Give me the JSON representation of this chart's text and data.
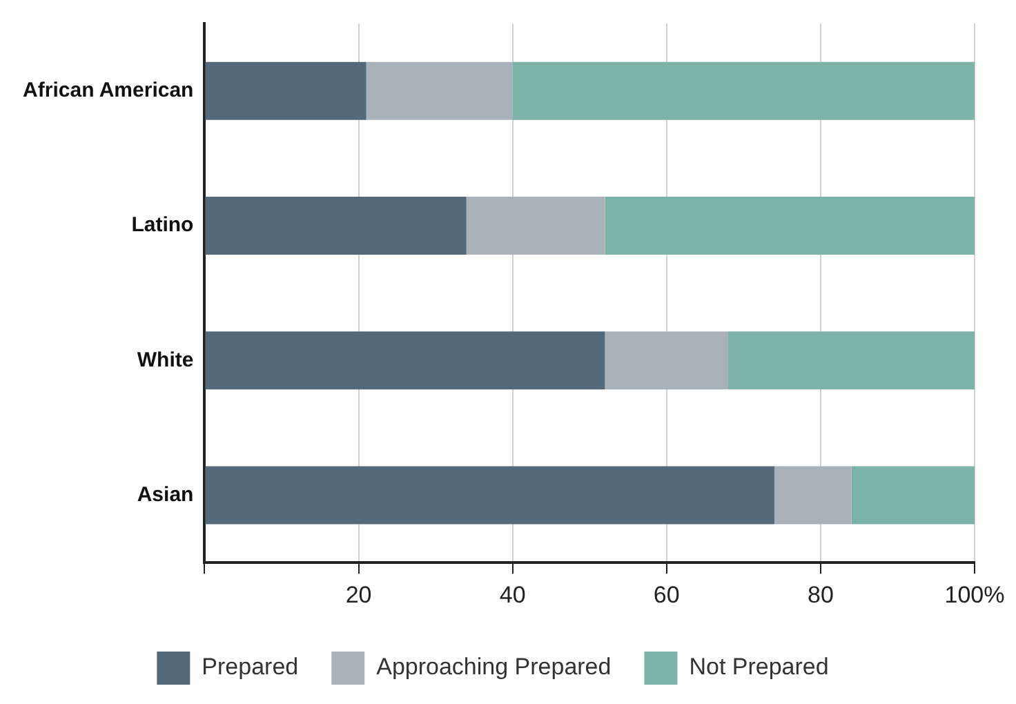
{
  "chart_data": {
    "type": "bar",
    "orientation": "horizontal",
    "stacked": true,
    "categories": [
      "African American",
      "Latino",
      "White",
      "Asian"
    ],
    "series": [
      {
        "name": "Prepared",
        "color": "#546a7b",
        "values": [
          21,
          34,
          52,
          74
        ]
      },
      {
        "name": "Approaching Prepared",
        "color": "#a9b2bb",
        "values": [
          19,
          18,
          16,
          10
        ]
      },
      {
        "name": "Not Prepared",
        "color": "#7db2a7",
        "values": [
          60,
          48,
          32,
          16
        ]
      }
    ],
    "xlim": [
      0,
      100
    ],
    "xticks": [
      {
        "value": 0,
        "label": null
      },
      20,
      40,
      60,
      80,
      {
        "value": 100,
        "label": "100%"
      }
    ],
    "grid": "x",
    "legend": "bottom"
  }
}
